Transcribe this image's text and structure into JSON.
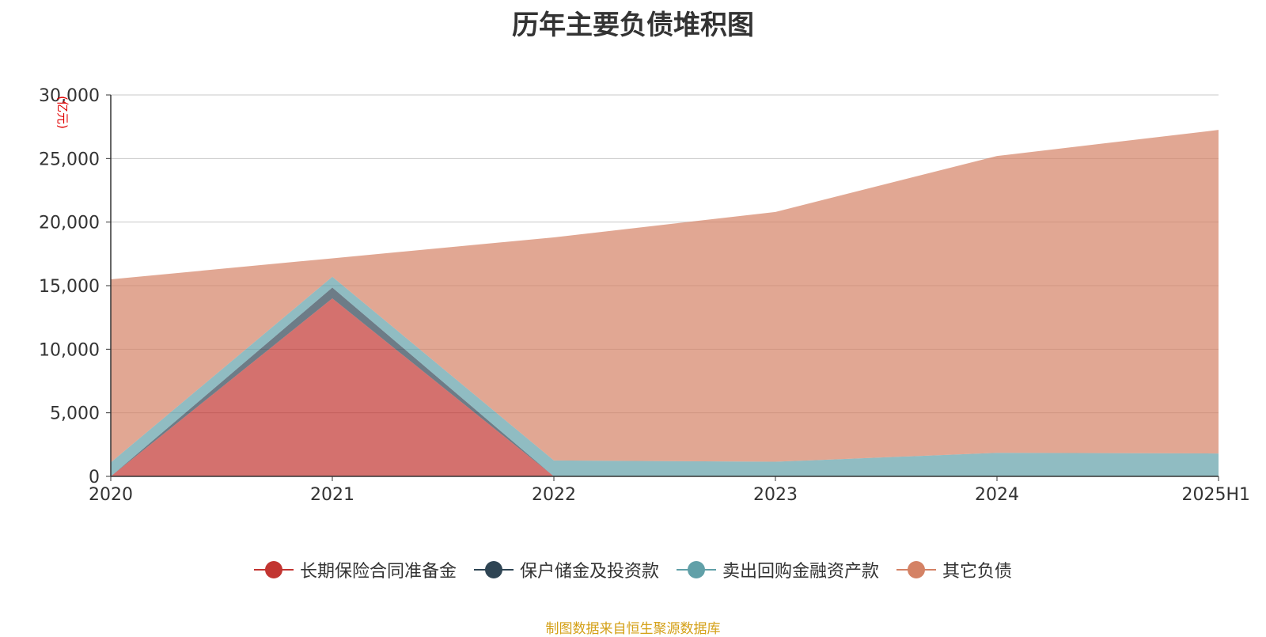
{
  "chart_data": {
    "type": "area",
    "stacked": true,
    "title": "历年主要负债堆积图",
    "unit_label": "(亿元)",
    "categories": [
      "2020",
      "2021",
      "2022",
      "2023",
      "2024",
      "2025H1"
    ],
    "y_ticks": [
      "0",
      "5,000",
      "10,000",
      "15,000",
      "20,000",
      "25,000",
      "30,000"
    ],
    "ylim": [
      0,
      30000
    ],
    "grid": true,
    "legend_position": "bottom",
    "series": [
      {
        "name": "长期保险合同准备金",
        "color": "#c23531",
        "values": [
          0,
          14000,
          0,
          0,
          0,
          0
        ]
      },
      {
        "name": "保户储金及投资款",
        "color": "#2f4554",
        "values": [
          0,
          850,
          0,
          0,
          0,
          0
        ]
      },
      {
        "name": "卖出回购金融资产款",
        "color": "#61a0a8",
        "values": [
          1100,
          850,
          1250,
          1150,
          1850,
          1800
        ]
      },
      {
        "name": "其它负债",
        "color": "#d48265",
        "values": [
          14400,
          1450,
          17550,
          19650,
          23350,
          25450
        ]
      }
    ]
  },
  "source_note": "制图数据来自恒生聚源数据库"
}
